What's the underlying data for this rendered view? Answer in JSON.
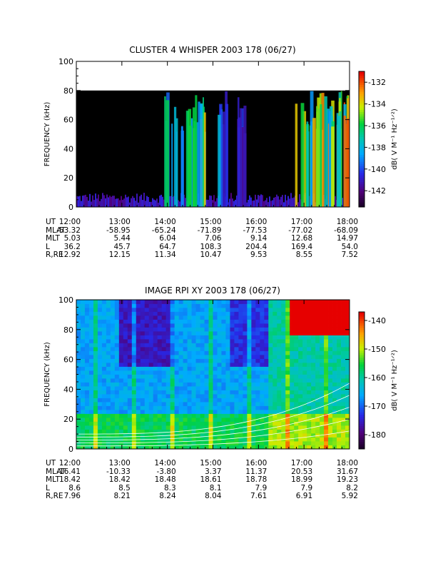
{
  "panels": [
    {
      "title": "CLUSTER 4 WHISPER 2003 178 (06/27)",
      "ylabel": "FREQUENCY (kHz)",
      "yticks": [
        "0",
        "20",
        "40",
        "60",
        "80",
        "100"
      ],
      "xticks": [
        "12:00",
        "13:00",
        "14:00",
        "15:00",
        "16:00",
        "17:00",
        "18:00"
      ],
      "colorbar": {
        "ticks": [
          "-132",
          "-134",
          "-136",
          "-138",
          "-140",
          "-142"
        ],
        "label": "dB( V M⁻¹ Hz⁻¹ᐟ²)"
      },
      "ephemeris": [
        {
          "label": "UT",
          "values": [
            "12:00",
            "13:00",
            "14:00",
            "15:00",
            "16:00",
            "17:00",
            "18:00"
          ]
        },
        {
          "label": "MLAT",
          "values": [
            "-53.32",
            "-58.95",
            "-65.24",
            "-71.89",
            "-77.53",
            "-77.02",
            "-68.09"
          ]
        },
        {
          "label": "MLT",
          "values": [
            "5.03",
            "5.44",
            "6.04",
            "7.06",
            "9.14",
            "12.68",
            "14.97"
          ]
        },
        {
          "label": "L",
          "values": [
            "36.2",
            "45.7",
            "64.7",
            "108.3",
            "204.4",
            "169.4",
            "54.0"
          ]
        },
        {
          "label": "R,RE",
          "values": [
            "12.92",
            "12.15",
            "11.34",
            "10.47",
            "9.53",
            "8.55",
            "7.52"
          ]
        }
      ]
    },
    {
      "title": "IMAGE RPI XY 2003 178 (06/27)",
      "ylabel": "FREQUENCY (kHz)",
      "yticks": [
        "0",
        "20",
        "40",
        "60",
        "80",
        "100"
      ],
      "xticks": [
        "12:00",
        "13:00",
        "14:00",
        "15:00",
        "16:00",
        "17:00",
        "18:00"
      ],
      "colorbar": {
        "ticks": [
          "-140",
          "-150",
          "-160",
          "-170",
          "-180"
        ],
        "label": "dB( V M⁻¹ Hz⁻¹ᐟ²)"
      },
      "ephemeris": [
        {
          "label": "UT",
          "values": [
            "12:00",
            "13:00",
            "14:00",
            "15:00",
            "16:00",
            "17:00",
            "18:00"
          ]
        },
        {
          "label": "MLAT",
          "values": [
            "-16.41",
            "-10.33",
            "-3.80",
            "3.37",
            "11.37",
            "20.53",
            "31.67"
          ]
        },
        {
          "label": "MLT",
          "values": [
            "18.42",
            "18.42",
            "18.48",
            "18.61",
            "18.78",
            "18.99",
            "19.23"
          ]
        },
        {
          "label": "L",
          "values": [
            "8.6",
            "8.5",
            "8.3",
            "8.1",
            "7.9",
            "7.9",
            "8.2"
          ]
        },
        {
          "label": "R,RE",
          "values": [
            "7.96",
            "8.21",
            "8.24",
            "8.04",
            "7.61",
            "6.91",
            "5.92"
          ]
        }
      ]
    }
  ],
  "chart_data": [
    {
      "type": "heatmap",
      "title": "CLUSTER 4 WHISPER 2003 178 (06/27)",
      "ylabel": "FREQUENCY (kHz)",
      "xlabel": "UT",
      "x_range": [
        "12:00",
        "18:00"
      ],
      "ylim": [
        0,
        100
      ],
      "data_ylim": [
        0,
        80
      ],
      "colorscale": "rainbow (black low, red high)",
      "clim": [
        -143.5,
        -131
      ],
      "colorbar_label": "dB( V M⁻¹ Hz⁻¹ᐟ²)",
      "features": [
        {
          "description": "broadband noise below ~10 kHz",
          "ut_range": [
            "12:00",
            "17:50"
          ],
          "freq_khz": [
            0,
            10
          ],
          "level_db": -141
        },
        {
          "description": "bursty emissions",
          "ut": [
            "14:20",
            "14:35",
            "17:10",
            "17:35",
            "17:50",
            "17:55"
          ]
        }
      ]
    },
    {
      "type": "heatmap",
      "title": "IMAGE RPI XY 2003 178 (06/27)",
      "ylabel": "FREQUENCY (kHz)",
      "xlabel": "UT",
      "x_range": [
        "12:00",
        "18:00"
      ],
      "ylim": [
        0,
        100
      ],
      "colorscale": "rainbow (dark purple low, red high)",
      "clim": [
        -185,
        -137
      ],
      "colorbar_label": "dB( V M⁻¹ Hz⁻¹ᐟ²)",
      "features": [
        {
          "description": "intense emission",
          "ut_range": [
            "17:20",
            "18:00"
          ],
          "freq_khz": [
            80,
            100
          ],
          "level_db": -138
        },
        {
          "description": "enhanced band",
          "freq_khz": [
            10,
            25
          ],
          "level_db": -160
        },
        {
          "description": "white overplotted curves rising with time",
          "ut_range": [
            "15:00",
            "18:00"
          ],
          "freq_khz": [
            3,
            30
          ]
        }
      ]
    }
  ]
}
